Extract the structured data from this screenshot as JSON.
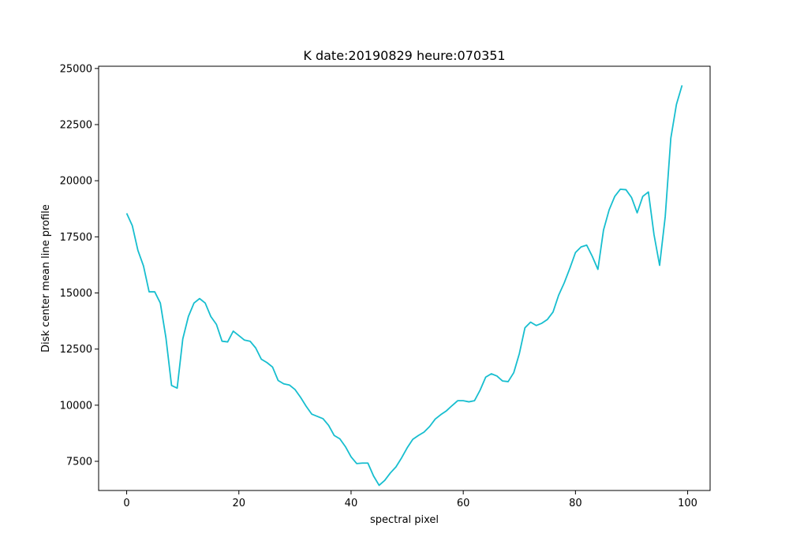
{
  "chart_data": {
    "type": "line",
    "title": "K date:20190829 heure:070351",
    "xlabel": "spectral pixel",
    "ylabel": "Disk center mean line profile",
    "xlim": [
      -5,
      104
    ],
    "ylim": [
      6200,
      25100
    ],
    "xticks": [
      0,
      20,
      40,
      60,
      80,
      100
    ],
    "xtick_labels": [
      "0",
      "20",
      "40",
      "60",
      "80",
      "100"
    ],
    "yticks": [
      7500,
      10000,
      12500,
      15000,
      17500,
      20000,
      22500,
      25000
    ],
    "ytick_labels": [
      "7500",
      "10000",
      "12500",
      "15000",
      "17500",
      "20000",
      "22500",
      "25000"
    ],
    "grid": false,
    "line_color": "#17becf",
    "series": [
      {
        "x": [
          0,
          1,
          2,
          3,
          4,
          5,
          6,
          7,
          8,
          9,
          10,
          11,
          12,
          13,
          14,
          15,
          16,
          17,
          18,
          19,
          20,
          21,
          22,
          23,
          24,
          25,
          26,
          27,
          28,
          29,
          30,
          31,
          32,
          33,
          34,
          35,
          36,
          37,
          38,
          39,
          40,
          41,
          42,
          43,
          44,
          45,
          46,
          47,
          48,
          49,
          50,
          51,
          52,
          53,
          54,
          55,
          56,
          57,
          58,
          59,
          60,
          61,
          62,
          63,
          64,
          65,
          66,
          67,
          68,
          69,
          70,
          71,
          72,
          73,
          74,
          75,
          76,
          77,
          78,
          79,
          80,
          81,
          82,
          83,
          84,
          85,
          86,
          87,
          88,
          89,
          90,
          91,
          92,
          93,
          94,
          95,
          96,
          97,
          98,
          99
        ],
        "values": [
          18550,
          18000,
          16900,
          16200,
          15050,
          15050,
          14550,
          13000,
          10880,
          10760,
          12950,
          13950,
          14550,
          14750,
          14550,
          13950,
          13600,
          12850,
          12820,
          13300,
          13100,
          12900,
          12850,
          12550,
          12050,
          11900,
          11700,
          11100,
          10950,
          10900,
          10700,
          10350,
          9950,
          9600,
          9500,
          9400,
          9100,
          8650,
          8500,
          8150,
          7700,
          7400,
          7420,
          7420,
          6850,
          6430,
          6650,
          6980,
          7250,
          7650,
          8100,
          8480,
          8650,
          8800,
          9050,
          9380,
          9580,
          9750,
          9980,
          10200,
          10200,
          10150,
          10200,
          10670,
          11250,
          11400,
          11300,
          11080,
          11050,
          11450,
          12300,
          13450,
          13700,
          13550,
          13650,
          13820,
          14150,
          14900,
          15450,
          16100,
          16800,
          17050,
          17130,
          16630,
          16050,
          17800,
          18700,
          19300,
          19620,
          19600,
          19250,
          18570,
          19300,
          19500,
          17600,
          16230,
          18400,
          21900,
          23400,
          24250
        ]
      }
    ]
  }
}
